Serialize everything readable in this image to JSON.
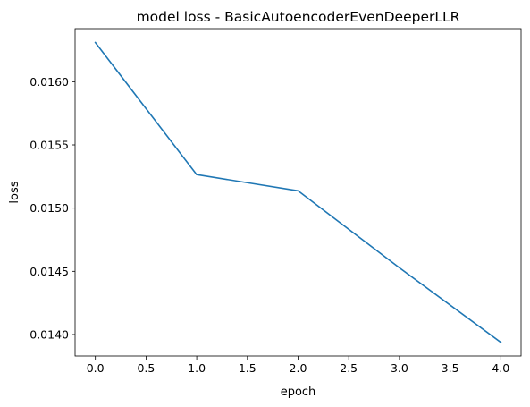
{
  "chart_data": {
    "type": "line",
    "title": "model loss - BasicAutoencoderEvenDeeperLLR",
    "xlabel": "epoch",
    "ylabel": "loss",
    "xlim": [
      -0.2,
      4.2
    ],
    "ylim": [
      0.01383,
      0.01642
    ],
    "x_ticks": [
      0.0,
      0.5,
      1.0,
      1.5,
      2.0,
      2.5,
      3.0,
      3.5,
      4.0
    ],
    "x_tick_labels": [
      "0.0",
      "0.5",
      "1.0",
      "1.5",
      "2.0",
      "2.5",
      "3.0",
      "3.5",
      "4.0"
    ],
    "y_ticks": [
      0.014,
      0.0145,
      0.015,
      0.0155,
      0.016
    ],
    "y_tick_labels": [
      "0.0140",
      "0.0145",
      "0.0150",
      "0.0155",
      "0.0160"
    ],
    "grid": false,
    "series": [
      {
        "color": "#1f77b4",
        "x": [
          0,
          1,
          2,
          3,
          4
        ],
        "values": [
          0.01631,
          0.015265,
          0.015137,
          0.014528,
          0.013938
        ]
      }
    ]
  }
}
